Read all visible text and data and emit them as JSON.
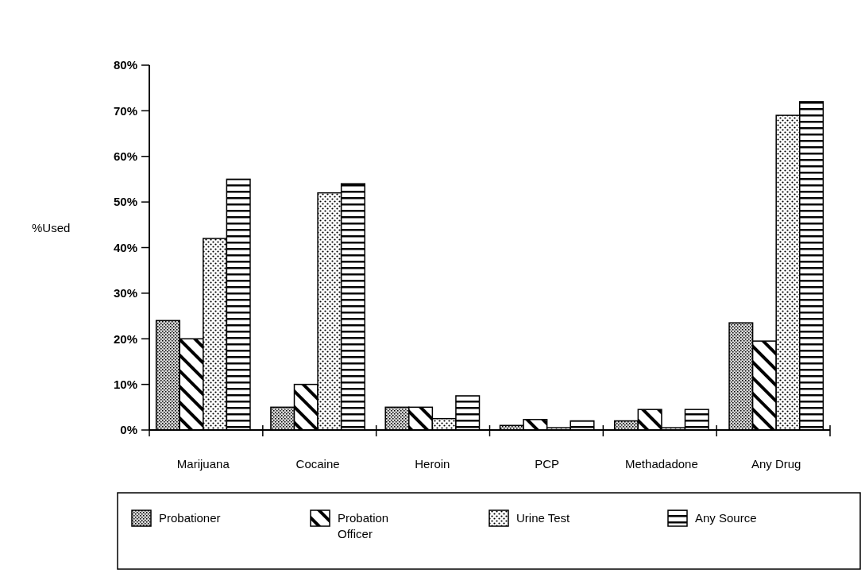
{
  "chart_data": {
    "type": "bar",
    "ylabel": "%Used",
    "categories": [
      "Marijuana",
      "Cocaine",
      "Heroin",
      "PCP",
      "Methadadone",
      "Any Drug"
    ],
    "series": [
      {
        "name": "Probationer",
        "color": "#000000",
        "values": [
          24,
          5,
          5,
          1,
          2,
          23.5
        ]
      },
      {
        "name": "Probation Officer",
        "color": "#000000",
        "values": [
          20,
          10,
          5,
          2.3,
          4.5,
          19.5
        ]
      },
      {
        "name": "Urine Test",
        "color": "#000000",
        "values": [
          42,
          52,
          2.5,
          0.5,
          0.5,
          69
        ]
      },
      {
        "name": "Any Source",
        "color": "#000000",
        "values": [
          55,
          54,
          7.5,
          2,
          4.5,
          72
        ]
      }
    ],
    "ylim": [
      0,
      80
    ],
    "yticks": [
      {
        "value": 0,
        "label": "0%"
      },
      {
        "value": 10,
        "label": "10%"
      },
      {
        "value": 20,
        "label": "20%"
      },
      {
        "value": 30,
        "label": "30%"
      },
      {
        "value": 40,
        "label": "40%"
      },
      {
        "value": 50,
        "label": "50%"
      },
      {
        "value": 60,
        "label": "60%"
      },
      {
        "value": 70,
        "label": "70%"
      },
      {
        "value": 80,
        "label": "80%"
      }
    ],
    "legend": "bottom"
  }
}
